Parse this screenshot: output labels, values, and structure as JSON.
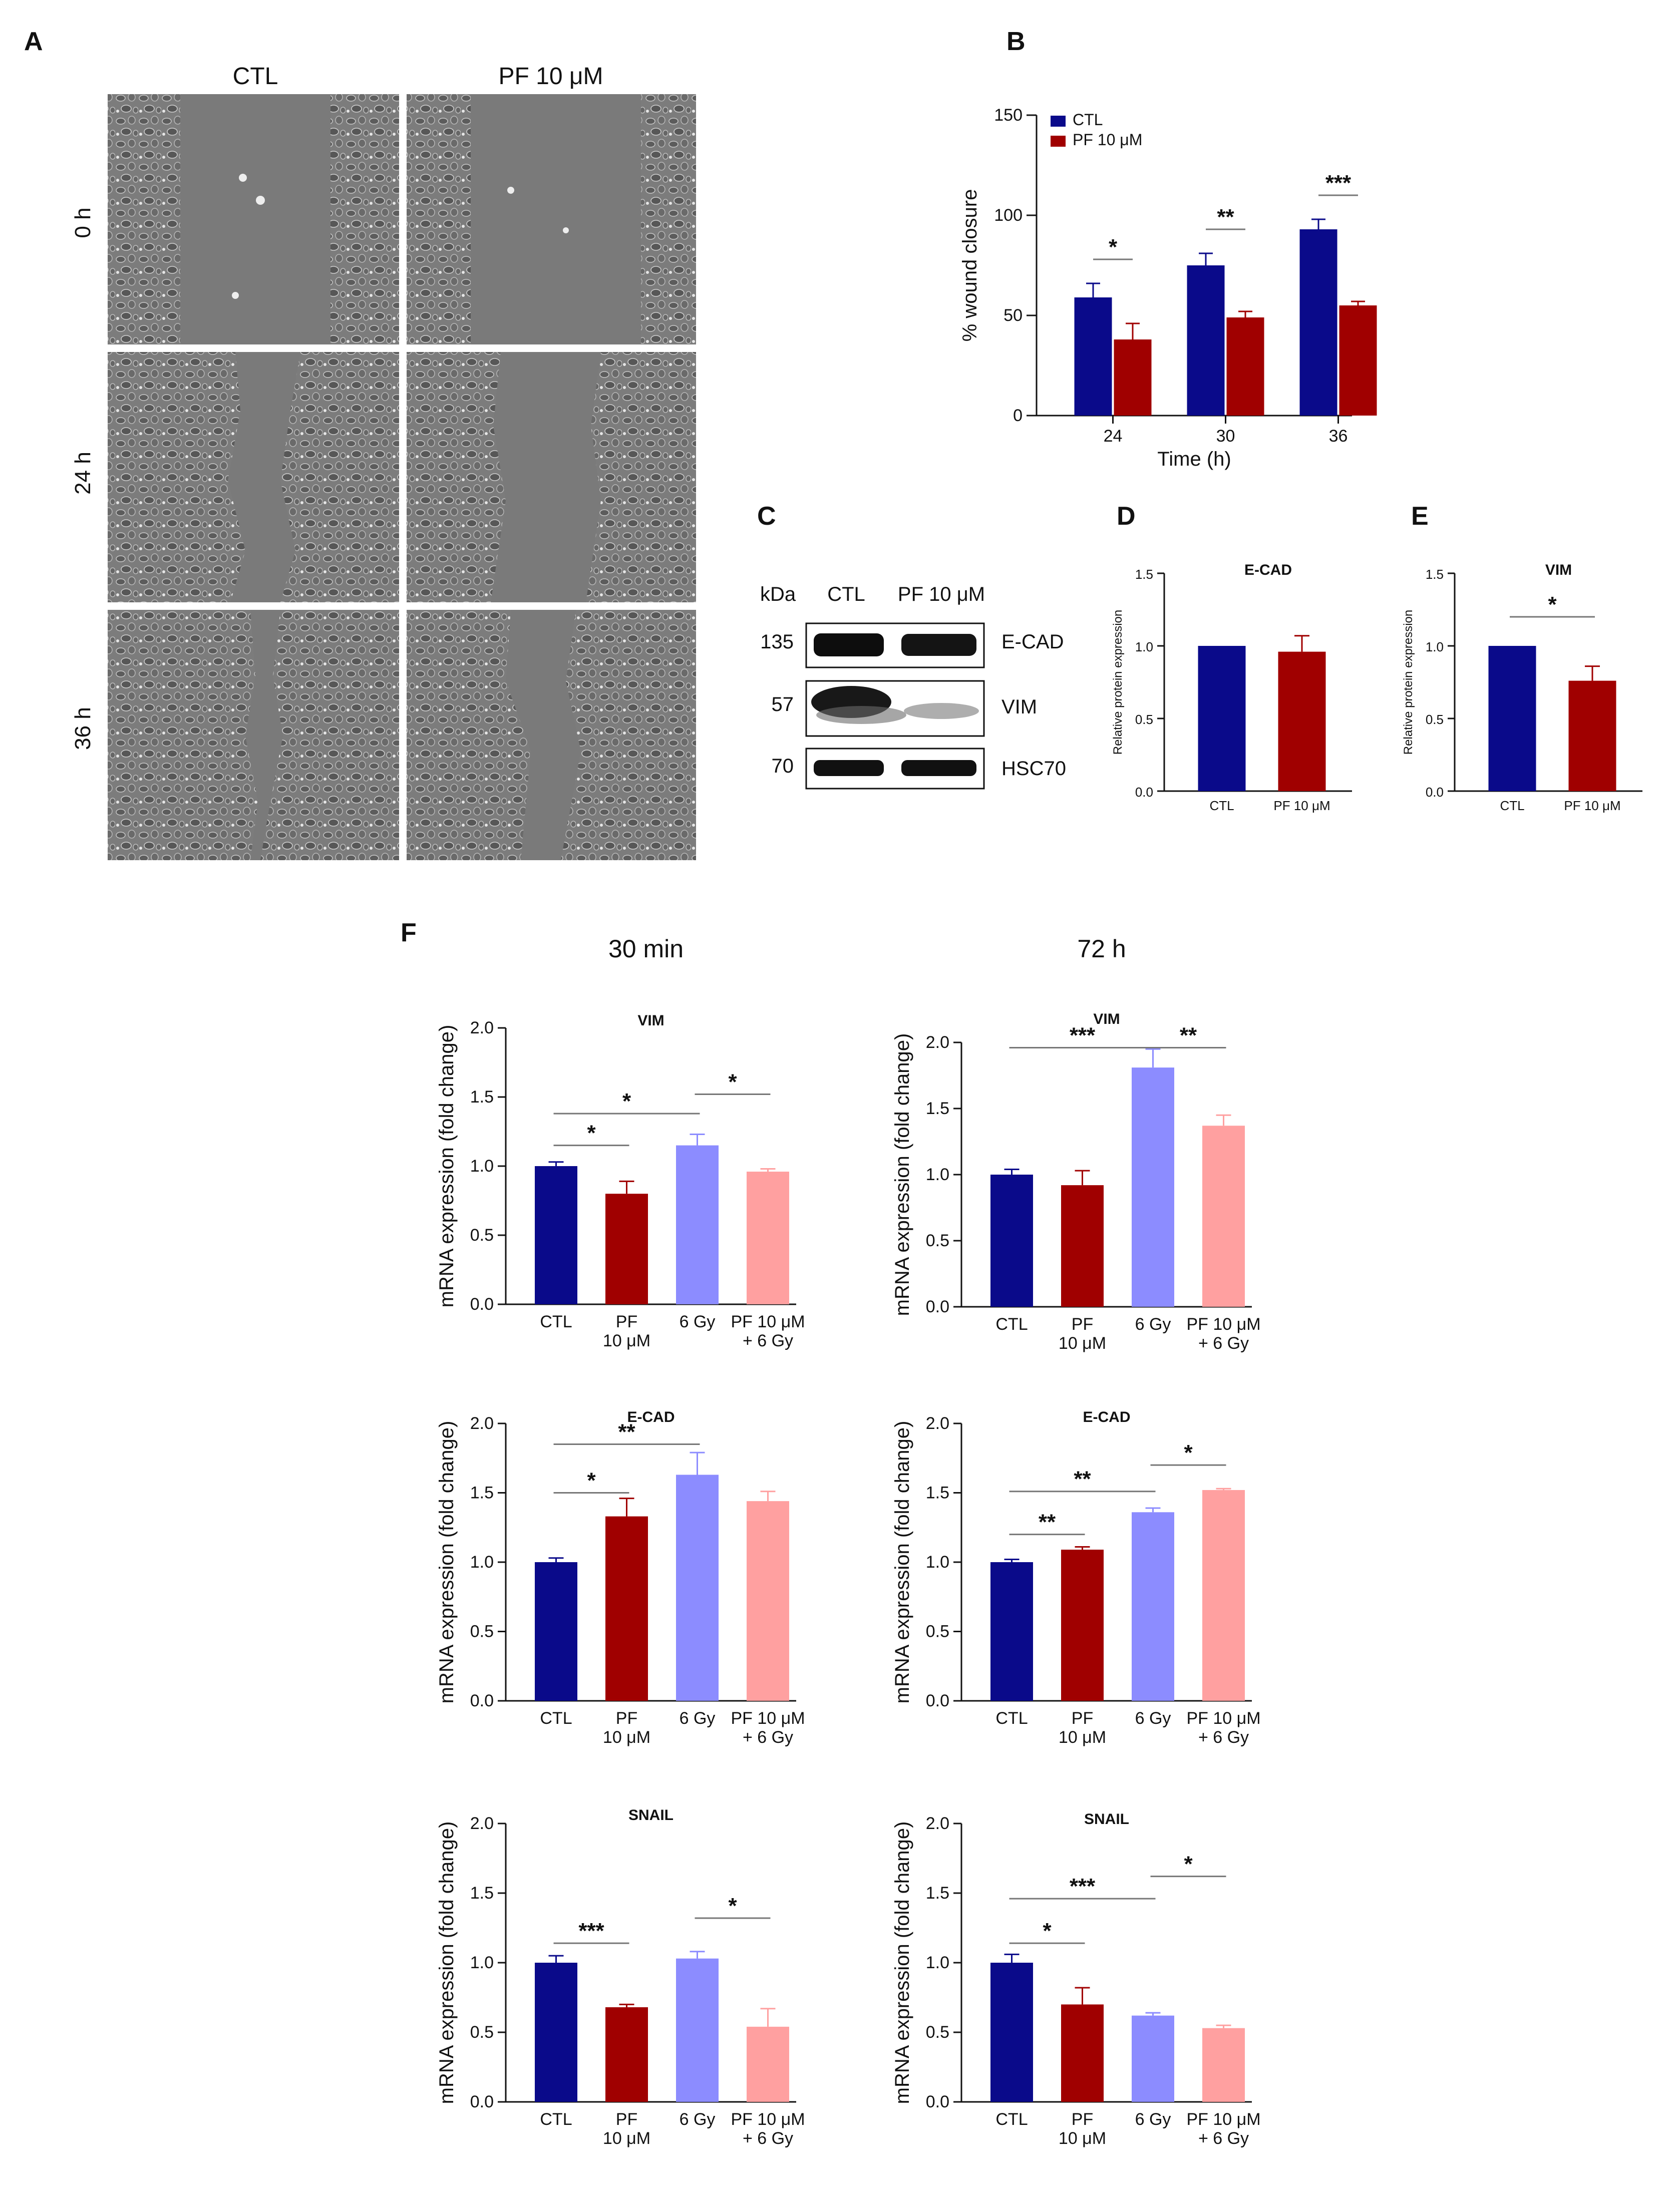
{
  "panels": {
    "A": "A",
    "B": "B",
    "C": "C",
    "D": "D",
    "E": "E",
    "F": "F"
  },
  "panel_a": {
    "columns": [
      "CTL",
      "PF 10 μM"
    ],
    "rows": [
      "0 h",
      "24 h",
      "36 h"
    ]
  },
  "panel_c": {
    "unit": "kDa",
    "lanes": [
      "CTL",
      "PF 10 μM"
    ],
    "bands": [
      {
        "kda": "135",
        "name": "E-CAD"
      },
      {
        "kda": "57",
        "name": "VIM"
      },
      {
        "kda": "70",
        "name": "HSC70"
      }
    ]
  },
  "panel_f": {
    "times": [
      "30 min",
      "72 h"
    ]
  },
  "colors": {
    "ctl": "#0a0a8a",
    "pf": "#a00000",
    "gy": "#8c8cff",
    "pfgy": "#ffa0a0"
  },
  "chart_data": [
    {
      "id": "B",
      "type": "bar",
      "title": "",
      "xlabel": "Time (h)",
      "ylabel": "% wound closure",
      "categories": [
        "24",
        "30",
        "36"
      ],
      "ylim": [
        0,
        150
      ],
      "yticks": [
        "0",
        "50",
        "100",
        "150"
      ],
      "legend": {
        "position": "top-left",
        "entries": [
          "CTL",
          "PF 10 μM"
        ]
      },
      "series": [
        {
          "name": "CTL",
          "values": [
            59,
            75,
            93
          ],
          "errors": [
            7,
            6,
            5
          ]
        },
        {
          "name": "PF 10 μM",
          "values": [
            38,
            49,
            55
          ],
          "errors": [
            8,
            3,
            2
          ]
        }
      ],
      "significance": [
        {
          "stars": "*",
          "pair": [
            0,
            0
          ]
        },
        {
          "stars": "**",
          "pair": [
            1,
            1
          ]
        },
        {
          "stars": "***",
          "pair": [
            2,
            2
          ]
        }
      ]
    },
    {
      "id": "D",
      "type": "bar",
      "title": "E-CAD",
      "ylabel": "Relative protein expression",
      "categories": [
        "CTL",
        "PF 10 μM"
      ],
      "ylim": [
        0,
        1.5
      ],
      "yticks": [
        "0.0",
        "0.5",
        "1.0",
        "1.5"
      ],
      "values": [
        1.0,
        0.96
      ],
      "errors": [
        0,
        0.11
      ],
      "significance": []
    },
    {
      "id": "E",
      "type": "bar",
      "title": "VIM",
      "ylabel": "Relative protein expression",
      "categories": [
        "CTL",
        "PF 10 μM"
      ],
      "ylim": [
        0,
        1.5
      ],
      "yticks": [
        "0.0",
        "0.5",
        "1.0",
        "1.5"
      ],
      "values": [
        1.0,
        0.76
      ],
      "errors": [
        0,
        0.1
      ],
      "significance": [
        {
          "stars": "*",
          "from": 0,
          "to": 1,
          "level": 1.2
        }
      ]
    },
    {
      "id": "F-VIM-30min",
      "type": "bar",
      "title": "VIM",
      "ylabel": "mRNA expression (fold change)",
      "categories": [
        "CTL",
        "PF 10 μM",
        "6 Gy",
        "PF 10 μM + 6 Gy"
      ],
      "ylim": [
        0,
        2.0
      ],
      "yticks": [
        "0.0",
        "0.5",
        "1.0",
        "1.5",
        "2.0"
      ],
      "values": [
        1.0,
        0.8,
        1.15,
        0.96
      ],
      "errors": [
        0.03,
        0.09,
        0.08,
        0.02
      ],
      "significance": [
        {
          "stars": "*",
          "from": 0,
          "to": 1,
          "level": 1.15
        },
        {
          "stars": "*",
          "from": 0,
          "to": 2,
          "level": 1.38
        },
        {
          "stars": "*",
          "from": 2,
          "to": 3,
          "level": 1.52
        }
      ]
    },
    {
      "id": "F-VIM-72h",
      "type": "bar",
      "title": "VIM",
      "ylabel": "mRNA expression (fold change)",
      "categories": [
        "CTL",
        "PF 10 μM",
        "6 Gy",
        "PF 10 μM + 6 Gy"
      ],
      "ylim": [
        0,
        2.0
      ],
      "yticks": [
        "0.0",
        "0.5",
        "1.0",
        "1.5",
        "2.0"
      ],
      "values": [
        1.0,
        0.92,
        1.81,
        1.37
      ],
      "errors": [
        0.04,
        0.11,
        0.14,
        0.08
      ],
      "significance": [
        {
          "stars": "***",
          "from": 0,
          "to": 2,
          "level": 1.96
        },
        {
          "stars": "**",
          "from": 2,
          "to": 3,
          "level": 1.96
        }
      ]
    },
    {
      "id": "F-ECAD-30min",
      "type": "bar",
      "title": "E-CAD",
      "ylabel": "mRNA expression (fold change)",
      "categories": [
        "CTL",
        "PF 10 μM",
        "6 Gy",
        "PF 10 μM + 6 Gy"
      ],
      "ylim": [
        0,
        2.0
      ],
      "yticks": [
        "0.0",
        "0.5",
        "1.0",
        "1.5",
        "2.0"
      ],
      "values": [
        1.0,
        1.33,
        1.63,
        1.44
      ],
      "errors": [
        0.03,
        0.13,
        0.16,
        0.07
      ],
      "significance": [
        {
          "stars": "*",
          "from": 0,
          "to": 1,
          "level": 1.5
        },
        {
          "stars": "**",
          "from": 0,
          "to": 2,
          "level": 1.85
        }
      ]
    },
    {
      "id": "F-ECAD-72h",
      "type": "bar",
      "title": "E-CAD",
      "ylabel": "mRNA expression (fold change)",
      "categories": [
        "CTL",
        "PF 10 μM",
        "6 Gy",
        "PF 10 μM + 6 Gy"
      ],
      "ylim": [
        0,
        2.0
      ],
      "yticks": [
        "0.0",
        "0.5",
        "1.0",
        "1.5",
        "2.0"
      ],
      "values": [
        1.0,
        1.09,
        1.36,
        1.52
      ],
      "errors": [
        0.02,
        0.02,
        0.03,
        0.01
      ],
      "significance": [
        {
          "stars": "**",
          "from": 0,
          "to": 1,
          "level": 1.2
        },
        {
          "stars": "**",
          "from": 0,
          "to": 2,
          "level": 1.51
        },
        {
          "stars": "*",
          "from": 2,
          "to": 3,
          "level": 1.7
        }
      ]
    },
    {
      "id": "F-SNAIL-30min",
      "type": "bar",
      "title": "SNAIL",
      "ylabel": "mRNA expression (fold change)",
      "categories": [
        "CTL",
        "PF 10 μM",
        "6 Gy",
        "PF 10 μM + 6 Gy"
      ],
      "ylim": [
        0,
        2.0
      ],
      "yticks": [
        "0.0",
        "0.5",
        "1.0",
        "1.5",
        "2.0"
      ],
      "values": [
        1.0,
        0.68,
        1.03,
        0.54
      ],
      "errors": [
        0.05,
        0.02,
        0.05,
        0.13
      ],
      "significance": [
        {
          "stars": "***",
          "from": 0,
          "to": 1,
          "level": 1.14
        },
        {
          "stars": "*",
          "from": 2,
          "to": 3,
          "level": 1.32
        }
      ]
    },
    {
      "id": "F-SNAIL-72h",
      "type": "bar",
      "title": "SNAIL",
      "ylabel": "mRNA expression (fold change)",
      "categories": [
        "CTL",
        "PF 10 μM",
        "6 Gy",
        "PF 10 μM + 6 Gy"
      ],
      "ylim": [
        0,
        2.0
      ],
      "yticks": [
        "0.0",
        "0.5",
        "1.0",
        "1.5",
        "2.0"
      ],
      "values": [
        1.0,
        0.7,
        0.62,
        0.53
      ],
      "errors": [
        0.06,
        0.12,
        0.02,
        0.02
      ],
      "significance": [
        {
          "stars": "*",
          "from": 0,
          "to": 1,
          "level": 1.14
        },
        {
          "stars": "***",
          "from": 0,
          "to": 2,
          "level": 1.46
        },
        {
          "stars": "*",
          "from": 2,
          "to": 3,
          "level": 1.62
        }
      ]
    }
  ]
}
